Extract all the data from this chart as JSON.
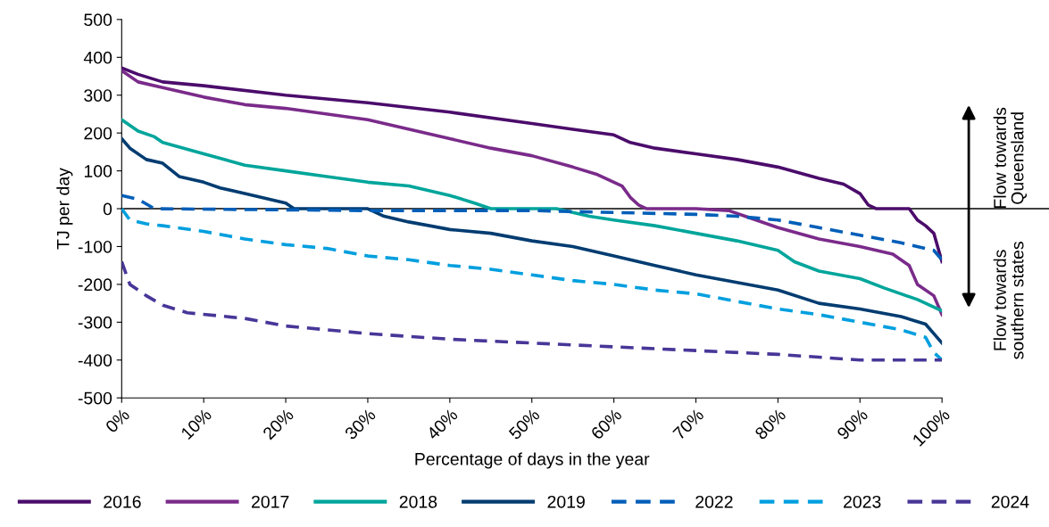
{
  "chart_data": {
    "type": "line",
    "xlabel": "Percentage of days in the year",
    "ylabel": "TJ per day",
    "xlim": [
      0,
      100
    ],
    "ylim": [
      -500,
      500
    ],
    "xticks": [
      {
        "value": 0,
        "label": "0%"
      },
      {
        "value": 10,
        "label": "10%"
      },
      {
        "value": 20,
        "label": "20%"
      },
      {
        "value": 30,
        "label": "30%"
      },
      {
        "value": 40,
        "label": "40%"
      },
      {
        "value": 50,
        "label": "50%"
      },
      {
        "value": 60,
        "label": "60%"
      },
      {
        "value": 70,
        "label": "70%"
      },
      {
        "value": 80,
        "label": "80%"
      },
      {
        "value": 90,
        "label": "90%"
      },
      {
        "value": 100,
        "label": "100%"
      }
    ],
    "yticks": [
      -500,
      -400,
      -300,
      -200,
      -100,
      0,
      100,
      200,
      300,
      400,
      500
    ],
    "grid": false,
    "legend": "bottom",
    "marker": "none",
    "ref_lines": [
      {
        "axis": "y",
        "value": 0,
        "color": "#000000"
      }
    ],
    "annotations": [
      "Flow towards\nQueensland",
      "Flow towards\nsouthern states"
    ],
    "series": [
      {
        "name": "2016",
        "color": "#4b0c6b",
        "line_style": "solid",
        "x": [
          0,
          2,
          5,
          10,
          20,
          30,
          40,
          50,
          55,
          60,
          62,
          65,
          70,
          75,
          80,
          85,
          88,
          90,
          91,
          92,
          96,
          97,
          98,
          99,
          100
        ],
        "values": [
          372,
          355,
          335,
          325,
          300,
          280,
          255,
          225,
          210,
          195,
          175,
          160,
          145,
          130,
          110,
          80,
          65,
          40,
          10,
          0,
          0,
          -30,
          -45,
          -65,
          -140
        ]
      },
      {
        "name": "2017",
        "color": "#7a2b8a",
        "line_style": "solid",
        "x": [
          0,
          2,
          5,
          10,
          15,
          20,
          30,
          40,
          45,
          50,
          55,
          58,
          61,
          62,
          63,
          64,
          70,
          74,
          76,
          80,
          85,
          90,
          94,
          96,
          97,
          99,
          100
        ],
        "values": [
          365,
          335,
          320,
          295,
          275,
          265,
          235,
          185,
          160,
          140,
          110,
          90,
          60,
          30,
          10,
          0,
          0,
          -5,
          -20,
          -50,
          -80,
          -100,
          -120,
          -150,
          -200,
          -230,
          -280
        ]
      },
      {
        "name": "2018",
        "color": "#00a59b",
        "line_style": "solid",
        "x": [
          0,
          2,
          4,
          5,
          10,
          15,
          20,
          25,
          30,
          35,
          40,
          43,
          45,
          53,
          57,
          60,
          65,
          70,
          75,
          80,
          82,
          85,
          90,
          93,
          97,
          100
        ],
        "values": [
          235,
          205,
          190,
          175,
          145,
          115,
          100,
          85,
          70,
          60,
          35,
          15,
          0,
          0,
          -20,
          -30,
          -45,
          -65,
          -85,
          -110,
          -140,
          -165,
          -185,
          -210,
          -240,
          -270
        ]
      },
      {
        "name": "2019",
        "color": "#003c71",
        "line_style": "solid",
        "x": [
          0,
          1,
          3,
          5,
          7,
          10,
          12,
          15,
          20,
          21,
          30,
          32,
          35,
          40,
          45,
          50,
          55,
          60,
          65,
          70,
          75,
          80,
          85,
          90,
          95,
          98,
          99,
          100
        ],
        "values": [
          185,
          160,
          130,
          120,
          85,
          70,
          55,
          40,
          15,
          0,
          0,
          -20,
          -35,
          -55,
          -65,
          -85,
          -100,
          -125,
          -150,
          -175,
          -195,
          -215,
          -250,
          -265,
          -285,
          -305,
          -330,
          -355
        ]
      },
      {
        "name": "2022",
        "color": "#005eb8",
        "line_style": "dashed",
        "x": [
          0,
          2,
          4,
          30,
          50,
          60,
          70,
          75,
          80,
          85,
          90,
          95,
          99,
          100
        ],
        "values": [
          35,
          25,
          0,
          -5,
          -5,
          -10,
          -15,
          -20,
          -30,
          -50,
          -70,
          -90,
          -110,
          -135
        ]
      },
      {
        "name": "2023",
        "color": "#009fdf",
        "line_style": "dashed",
        "x": [
          0,
          1,
          3,
          5,
          10,
          15,
          20,
          25,
          30,
          35,
          40,
          45,
          50,
          55,
          60,
          65,
          70,
          75,
          80,
          85,
          90,
          95,
          98,
          99,
          100
        ],
        "values": [
          0,
          -30,
          -40,
          -45,
          -60,
          -80,
          -95,
          -105,
          -125,
          -135,
          -150,
          -160,
          -175,
          -190,
          -200,
          -215,
          -225,
          -245,
          -265,
          -280,
          -300,
          -320,
          -340,
          -380,
          -400
        ]
      },
      {
        "name": "2024",
        "color": "#483698",
        "line_style": "dashed",
        "x": [
          0,
          1,
          3,
          5,
          8,
          15,
          20,
          25,
          30,
          40,
          50,
          60,
          70,
          80,
          90,
          100
        ],
        "values": [
          -140,
          -200,
          -230,
          -255,
          -275,
          -290,
          -310,
          -320,
          -330,
          -345,
          -355,
          -365,
          -375,
          -385,
          -400,
          -400
        ]
      }
    ]
  }
}
